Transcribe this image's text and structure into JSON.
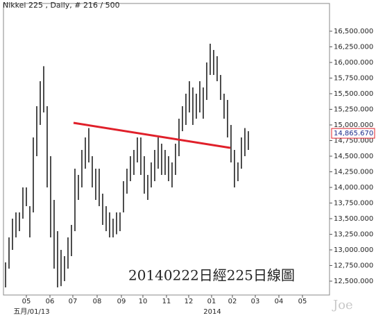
{
  "chart_data": {
    "type": "ohlc",
    "title": "Nikkei 225 , Daily, # 216 / 500",
    "annotation": "20140222日經225日線圖",
    "watermark": "Joe",
    "bar_color": "#000000",
    "xlim": [
      -1.6,
      93.4
    ],
    "ylim": [
      12278,
      16944
    ],
    "high": [
      12800,
      13200,
      13500,
      13600,
      13600,
      14000,
      14000,
      13700,
      14800,
      15300,
      15700,
      15940,
      15300,
      14500,
      13800,
      13300,
      13000,
      12900,
      13200,
      13400,
      14300,
      14200,
      14600,
      14800,
      14950,
      14500,
      14300,
      14300,
      13900,
      13700,
      13600,
      13500,
      13600,
      13600,
      14100,
      14300,
      14500,
      14600,
      14800,
      14800,
      14500,
      14200,
      14400,
      14600,
      14800,
      14700,
      14600,
      14500,
      14400,
      14700,
      15100,
      15300,
      15500,
      15700,
      15600,
      15500,
      15700,
      15600,
      16000,
      16300,
      16200,
      16100,
      15800,
      15500,
      15400,
      15000,
      14600,
      14400,
      14800,
      14950,
      14900
    ],
    "low": [
      12400,
      12700,
      13000,
      13200,
      13300,
      13500,
      13700,
      13200,
      13600,
      14500,
      15000,
      15200,
      14000,
      13200,
      12700,
      12400,
      12420,
      12500,
      12700,
      12900,
      13300,
      13800,
      14000,
      14300,
      14400,
      14000,
      13800,
      13700,
      13400,
      13300,
      13200,
      13200,
      13250,
      13300,
      13600,
      13900,
      14100,
      14200,
      14400,
      14200,
      13900,
      13800,
      14000,
      14100,
      14300,
      14200,
      14200,
      14100,
      14000,
      14200,
      14500,
      14900,
      15000,
      15200,
      15000,
      15100,
      15200,
      15100,
      15400,
      15800,
      15800,
      15700,
      15400,
      15100,
      14800,
      14400,
      14000,
      14100,
      14300,
      14500,
      14600
    ],
    "trendline": {
      "color": "#e0202a",
      "x": [
        19.6,
        64.8
      ],
      "values": [
        15033,
        14633
      ]
    },
    "last_price": {
      "value": 14865.67,
      "label": "14,865.670"
    },
    "yticks": [
      {
        "value": 12500,
        "label": "12,500.000"
      },
      {
        "value": 12750,
        "label": "12,750.000"
      },
      {
        "value": 13000,
        "label": "13,000.000"
      },
      {
        "value": 13250,
        "label": "13,250.000"
      },
      {
        "value": 13500,
        "label": "13,500.000"
      },
      {
        "value": 13750,
        "label": "13,750.000"
      },
      {
        "value": 14000,
        "label": "14,000.000"
      },
      {
        "value": 14250,
        "label": "14,250.000"
      },
      {
        "value": 14500,
        "label": "14,500.000"
      },
      {
        "value": 14750,
        "label": "14,750.000"
      },
      {
        "value": 15000,
        "label": "15,000.000"
      },
      {
        "value": 15250,
        "label": "15,250.000"
      },
      {
        "value": 15500,
        "label": "15,500.000"
      },
      {
        "value": 15750,
        "label": "15,750.000"
      },
      {
        "value": 16000,
        "label": "16,000.000"
      },
      {
        "value": 16250,
        "label": "16,250.000"
      },
      {
        "value": 16500,
        "label": "16,500.000"
      }
    ],
    "xticks": [
      {
        "value": 6,
        "label": "05"
      },
      {
        "value": 12.8,
        "label": "06"
      },
      {
        "value": 19.4,
        "label": "07"
      },
      {
        "value": 26.4,
        "label": "08"
      },
      {
        "value": 33.4,
        "label": "09"
      },
      {
        "value": 39.6,
        "label": "10"
      },
      {
        "value": 46.4,
        "label": "11"
      },
      {
        "value": 52.8,
        "label": "12"
      },
      {
        "value": 59.4,
        "label": "01"
      },
      {
        "value": 65.4,
        "label": "02"
      },
      {
        "value": 72,
        "label": "03"
      },
      {
        "value": 78.8,
        "label": "04"
      },
      {
        "value": 85.6,
        "label": "05"
      }
    ],
    "xticks_secondary": [
      {
        "value": 7.5,
        "label": "五月/01/13"
      },
      {
        "value": 59.6,
        "label": "2014"
      }
    ]
  }
}
